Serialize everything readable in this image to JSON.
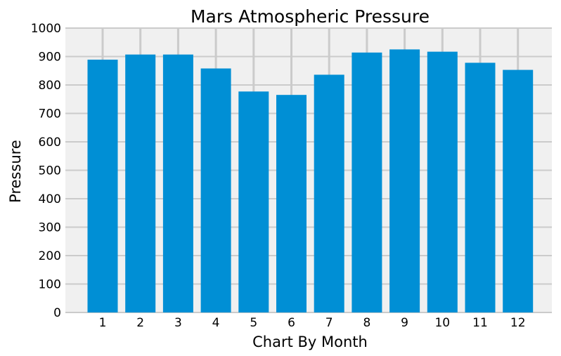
{
  "chart_data": {
    "type": "bar",
    "title": "Mars Atmospheric Pressure",
    "xlabel": "Chart By Month",
    "ylabel": "Pressure",
    "categories": [
      "1",
      "2",
      "3",
      "4",
      "5",
      "6",
      "7",
      "8",
      "9",
      "10",
      "11",
      "12"
    ],
    "values": [
      889,
      907,
      907,
      858,
      777,
      765,
      836,
      914,
      925,
      917,
      878,
      853
    ],
    "ylim": [
      0,
      1000
    ],
    "yticks": [
      0,
      100,
      200,
      300,
      400,
      500,
      600,
      700,
      800,
      900,
      1000
    ],
    "grid": true,
    "colors": {
      "bar": "#008fd5",
      "plot_background": "#f0f0f0",
      "grid": "#cbcbcb",
      "figure_background": "#ffffff"
    }
  }
}
